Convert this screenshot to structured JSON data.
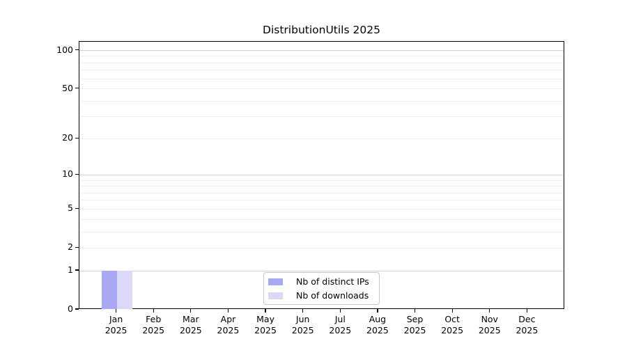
{
  "chart_data": {
    "type": "bar",
    "title": "DistributionUtils 2025",
    "categories": [
      "Jan",
      "Feb",
      "Mar",
      "Apr",
      "May",
      "Jun",
      "Jul",
      "Aug",
      "Sep",
      "Oct",
      "Nov",
      "Dec"
    ],
    "year_label": "2025",
    "series": [
      {
        "name": "Nb of distinct IPs",
        "color": "#a9a9f3",
        "values": [
          1,
          0,
          0,
          0,
          0,
          0,
          0,
          0,
          0,
          0,
          0,
          0
        ]
      },
      {
        "name": "Nb of downloads",
        "color": "#dadaf8",
        "values": [
          1,
          0,
          0,
          0,
          0,
          0,
          0,
          0,
          0,
          0,
          0,
          0
        ]
      }
    ],
    "y_axis": {
      "scale": "log1p",
      "tick_values": [
        0,
        1,
        2,
        5,
        10,
        20,
        50,
        100
      ],
      "major_gridlines": [
        1,
        10,
        100
      ],
      "minor_gridlines": [
        2,
        3,
        4,
        5,
        6,
        7,
        8,
        9,
        20,
        30,
        40,
        50,
        60,
        70,
        80,
        90
      ],
      "top_value": 117,
      "bottom_value": 0
    },
    "xlabel": "",
    "ylabel": "",
    "grid": true,
    "legend": {
      "position": "bottom-center",
      "entries": [
        {
          "label": "Nb of distinct IPs",
          "color": "#a9a9f3"
        },
        {
          "label": "Nb of downloads",
          "color": "#dadaf8"
        }
      ]
    }
  },
  "colors": {
    "background": "#ffffff",
    "spine": "#000000",
    "grid_major": "#d2d2d2",
    "grid_minor": "#efefef",
    "text": "#000000",
    "legend_border": "#c9c9c9"
  }
}
